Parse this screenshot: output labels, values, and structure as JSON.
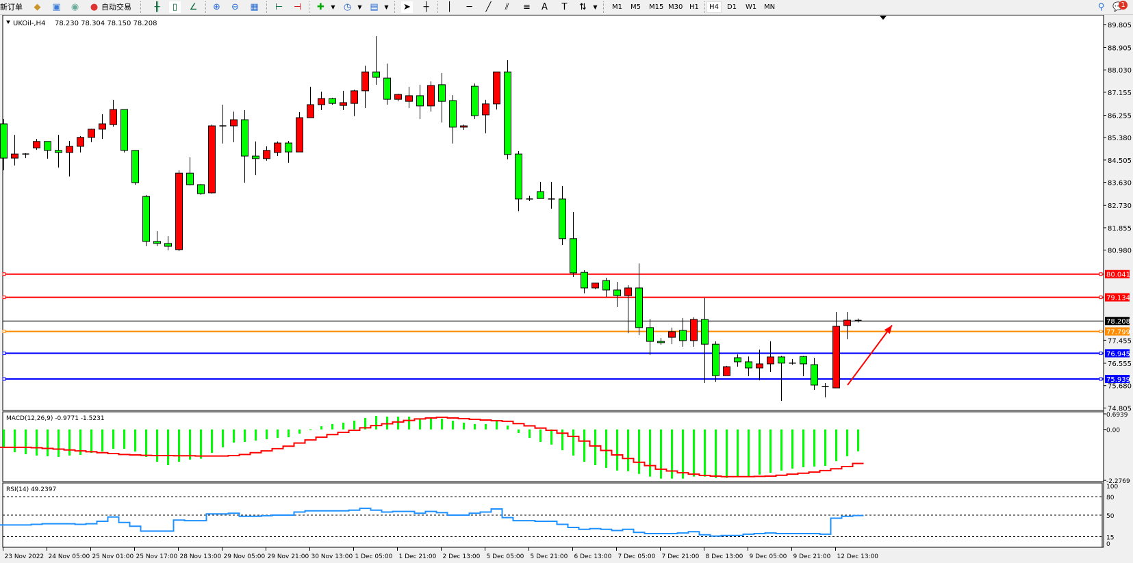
{
  "toolbar": {
    "new_order_label": "新订单",
    "auto_trading_label": "自动交易",
    "icons": [
      "metaeditor-icon",
      "terminal-icon",
      "signals-icon",
      "auto-trading-icon",
      "bar-chart-icon",
      "candlestick-icon",
      "line-chart-icon",
      "zoom-in-icon",
      "zoom-out-icon",
      "tile-windows-icon",
      "autoscroll-icon",
      "chart-shift-icon",
      "indicators-icon",
      "periods-icon",
      "templates-icon",
      "cursor-icon",
      "crosshair-icon",
      "vertical-line-icon",
      "horizontal-line-icon",
      "trendline-icon",
      "equidistant-channel-icon",
      "fibonacci-icon",
      "text-icon",
      "text-label-icon",
      "arrows-icon",
      "search-icon",
      "chat-icon"
    ],
    "timeframes": [
      "M1",
      "M5",
      "M15",
      "M30",
      "H1",
      "H4",
      "D1",
      "W1",
      "MN"
    ],
    "selected_timeframe": "H4",
    "notification_count": "1"
  },
  "chart_header": {
    "symbol": "UKOil-,H4",
    "ohlc": "78.230 78.304 78.150 78.208"
  },
  "colors": {
    "bull": "#ff0000",
    "bear": "#00ff00",
    "macd_hist": "#00ff00",
    "macd_signal": "#ff0000",
    "rsi": "#1e90ff",
    "arrow": "#ff0000"
  },
  "chart_data": [
    {
      "type": "candlestick",
      "title": "UKOil-,H4",
      "ohlc_fields": [
        "open",
        "high",
        "low",
        "close"
      ],
      "ylim": [
        74.805,
        89.805
      ],
      "y_ticks": [
        "89.805",
        "88.905",
        "88.030",
        "87.155",
        "86.255",
        "85.380",
        "84.505",
        "83.630",
        "82.730",
        "81.855",
        "80.980",
        "77.455",
        "76.555",
        "75.680",
        "74.805"
      ],
      "x_tick_labels": [
        "23 Nov 2022",
        "24 Nov 05:00",
        "25 Nov 01:00",
        "25 Nov 17:00",
        "28 Nov 13:00",
        "29 Nov 05:00",
        "29 Nov 21:00",
        "30 Nov 13:00",
        "1 Dec 05:00",
        "1 Dec 21:00",
        "2 Dec 13:00",
        "5 Dec 05:00",
        "5 Dec 21:00",
        "6 Dec 13:00",
        "7 Dec 05:00",
        "7 Dec 21:00",
        "8 Dec 13:00",
        "9 Dec 05:00",
        "9 Dec 21:00",
        "12 Dec 13:00"
      ],
      "x_tick_every_n_bars": 4,
      "candles": [
        [
          85.92,
          86.11,
          84.1,
          84.58
        ],
        [
          84.58,
          85.49,
          84.29,
          84.74
        ],
        [
          84.74,
          84.77,
          84.58,
          84.74
        ],
        [
          84.98,
          85.33,
          84.9,
          85.23
        ],
        [
          85.23,
          85.23,
          84.56,
          84.88
        ],
        [
          84.88,
          85.49,
          84.21,
          84.8
        ],
        [
          84.8,
          85.25,
          83.86,
          85.04
        ],
        [
          85.04,
          85.44,
          84.8,
          85.39
        ],
        [
          85.39,
          85.73,
          85.2,
          85.71
        ],
        [
          85.71,
          86.3,
          85.33,
          85.92
        ],
        [
          85.89,
          86.86,
          85.81,
          86.48
        ],
        [
          86.48,
          86.48,
          84.8,
          84.88
        ],
        [
          84.88,
          84.88,
          83.54,
          83.62
        ],
        [
          83.08,
          83.14,
          81.13,
          81.32
        ],
        [
          81.32,
          81.72,
          81.13,
          81.24
        ],
        [
          81.24,
          81.53,
          80.97,
          81.13
        ],
        [
          81.0,
          84.1,
          80.94,
          83.99
        ],
        [
          83.99,
          84.61,
          83.51,
          83.54
        ],
        [
          83.54,
          83.57,
          83.14,
          83.19
        ],
        [
          83.22,
          85.89,
          83.19,
          85.84
        ],
        [
          85.84,
          86.67,
          85.15,
          85.84
        ],
        [
          85.84,
          86.4,
          85.2,
          86.08
        ],
        [
          86.08,
          86.46,
          83.62,
          84.66
        ],
        [
          84.66,
          85.23,
          83.91,
          84.56
        ],
        [
          84.56,
          85.04,
          84.48,
          84.88
        ],
        [
          84.8,
          85.23,
          84.66,
          85.17
        ],
        [
          85.17,
          85.25,
          84.4,
          84.82
        ],
        [
          84.82,
          86.38,
          84.82,
          86.16
        ],
        [
          86.16,
          87.37,
          86.16,
          86.67
        ],
        [
          86.67,
          87.18,
          86.46,
          86.91
        ],
        [
          86.91,
          86.94,
          86.67,
          86.72
        ],
        [
          86.64,
          87.21,
          86.46,
          86.75
        ],
        [
          86.72,
          87.26,
          86.22,
          87.21
        ],
        [
          87.21,
          88.2,
          86.54,
          87.95
        ],
        [
          87.95,
          89.35,
          87.45,
          87.74
        ],
        [
          87.71,
          88.28,
          86.67,
          86.88
        ],
        [
          86.88,
          87.1,
          86.8,
          87.07
        ],
        [
          86.8,
          87.37,
          86.54,
          87.02
        ],
        [
          87.02,
          87.45,
          86.11,
          86.62
        ],
        [
          86.62,
          87.58,
          86.4,
          87.42
        ],
        [
          87.45,
          87.9,
          85.97,
          86.8
        ],
        [
          86.83,
          87.04,
          85.15,
          85.79
        ],
        [
          85.79,
          85.89,
          85.68,
          85.84
        ],
        [
          87.39,
          87.5,
          86.11,
          86.24
        ],
        [
          86.27,
          86.86,
          85.55,
          86.7
        ],
        [
          86.7,
          87.95,
          86.48,
          87.95
        ],
        [
          87.95,
          88.41,
          84.53,
          84.72
        ],
        [
          84.74,
          84.85,
          82.5,
          82.98
        ],
        [
          82.98,
          83.11,
          82.9,
          82.98
        ],
        [
          83.27,
          83.65,
          83.0,
          83.0
        ],
        [
          82.98,
          83.65,
          82.6,
          82.98
        ],
        [
          82.98,
          83.49,
          81.18,
          81.43
        ],
        [
          81.43,
          82.47,
          79.93,
          80.09
        ],
        [
          80.11,
          80.19,
          79.29,
          79.5
        ],
        [
          79.5,
          79.69,
          79.45,
          79.69
        ],
        [
          79.79,
          79.9,
          79.15,
          79.42
        ],
        [
          79.42,
          79.74,
          78.75,
          79.2
        ],
        [
          79.2,
          79.61,
          77.73,
          79.5
        ],
        [
          79.5,
          80.46,
          77.65,
          77.95
        ],
        [
          77.95,
          78.29,
          76.88,
          77.41
        ],
        [
          77.41,
          77.55,
          77.28,
          77.36
        ],
        [
          77.57,
          77.95,
          77.3,
          77.79
        ],
        [
          77.84,
          78.32,
          77.2,
          77.44
        ],
        [
          77.44,
          78.35,
          77.2,
          78.27
        ],
        [
          78.27,
          79.1,
          75.78,
          77.3
        ],
        [
          77.3,
          77.41,
          75.83,
          76.07
        ],
        [
          76.07,
          76.45,
          76.07,
          76.42
        ],
        [
          76.77,
          76.9,
          76.42,
          76.61
        ],
        [
          76.61,
          76.82,
          76.05,
          76.37
        ],
        [
          76.37,
          77.09,
          75.89,
          76.53
        ],
        [
          76.53,
          77.41,
          76.21,
          76.8
        ],
        [
          76.8,
          76.85,
          75.08,
          76.56
        ],
        [
          76.56,
          76.72,
          76.5,
          76.56
        ],
        [
          76.82,
          76.85,
          76.05,
          76.53
        ],
        [
          76.5,
          76.77,
          75.51,
          75.7
        ],
        [
          75.65,
          75.78,
          75.22,
          75.65
        ],
        [
          75.59,
          78.56,
          75.59,
          78.0
        ],
        [
          78.03,
          78.56,
          77.49,
          78.24
        ],
        [
          78.23,
          78.304,
          78.15,
          78.208
        ]
      ],
      "horizontal_lines": [
        {
          "price": 80.041,
          "label": "80.041",
          "color": "#ff0000"
        },
        {
          "price": 79.134,
          "label": "79.134",
          "color": "#ff0000"
        },
        {
          "price": 78.208,
          "label": "78.208",
          "color": "#000000"
        },
        {
          "price": 77.799,
          "label": "77.799",
          "color": "#ff8c00"
        },
        {
          "price": 76.945,
          "label": "76.945",
          "color": "#0000ff"
        },
        {
          "price": 75.939,
          "label": "75.939",
          "color": "#0000ff"
        }
      ],
      "annotation": {
        "type": "arrow",
        "direction": "up-right",
        "from_price": 75.7,
        "to_price": 78.04,
        "color": "#ff0000"
      }
    },
    {
      "type": "bar+line",
      "title": "MACD(12,26,9) -0.9771 -1.5231",
      "ylim": [
        -2.2769,
        0.6939
      ],
      "y_ticks": [
        "0.6939",
        "0.00",
        "-2.2769"
      ],
      "histogram": [
        -0.83,
        -1.02,
        -1.11,
        -1.17,
        -1.2,
        -1.23,
        -1.17,
        -1.14,
        -1.05,
        -0.99,
        -0.87,
        -0.87,
        -0.99,
        -1.23,
        -1.45,
        -1.6,
        -1.45,
        -1.35,
        -1.31,
        -1.05,
        -0.8,
        -0.59,
        -0.56,
        -0.5,
        -0.44,
        -0.38,
        -0.35,
        -0.19,
        -0.04,
        0.14,
        0.24,
        0.3,
        0.39,
        0.51,
        0.6,
        0.57,
        0.57,
        0.57,
        0.48,
        0.54,
        0.48,
        0.39,
        0.3,
        0.24,
        0.24,
        0.36,
        0.17,
        -0.16,
        -0.38,
        -0.56,
        -0.68,
        -0.93,
        -1.17,
        -1.45,
        -1.6,
        -1.72,
        -1.84,
        -1.87,
        -1.99,
        -2.11,
        -2.2,
        -2.2,
        -2.2,
        -2.11,
        -2.11,
        -2.17,
        -2.17,
        -2.11,
        -2.11,
        -2.02,
        -1.94,
        -1.84,
        -1.75,
        -1.69,
        -1.66,
        -1.63,
        -1.42,
        -1.2,
        -0.9771
      ],
      "signal": [
        -0.8,
        -0.8,
        -0.8,
        -0.82,
        -0.85,
        -0.88,
        -0.92,
        -0.96,
        -1.0,
        -1.04,
        -1.08,
        -1.12,
        -1.14,
        -1.16,
        -1.17,
        -1.17,
        -1.18,
        -1.18,
        -1.19,
        -1.19,
        -1.19,
        -1.17,
        -1.12,
        -1.04,
        -0.96,
        -0.86,
        -0.75,
        -0.61,
        -0.47,
        -0.35,
        -0.23,
        -0.13,
        -0.04,
        0.07,
        0.17,
        0.25,
        0.33,
        0.4,
        0.47,
        0.51,
        0.54,
        0.51,
        0.48,
        0.45,
        0.42,
        0.39,
        0.36,
        0.26,
        0.16,
        0.06,
        -0.04,
        -0.17,
        -0.31,
        -0.52,
        -0.74,
        -0.94,
        -1.14,
        -1.3,
        -1.47,
        -1.62,
        -1.78,
        -1.86,
        -1.94,
        -2.0,
        -2.06,
        -2.09,
        -2.11,
        -2.11,
        -2.11,
        -2.1,
        -2.09,
        -2.05,
        -2.0,
        -1.96,
        -1.91,
        -1.84,
        -1.76,
        -1.66,
        -1.5231
      ]
    },
    {
      "type": "line",
      "title": "RSI(14) 49.2397",
      "ylim": [
        0,
        100
      ],
      "y_ticks": [
        "100",
        "80",
        "50",
        "15",
        "0"
      ],
      "levels": [
        80,
        50,
        15
      ],
      "values": [
        34,
        34,
        34,
        35,
        36,
        36,
        36,
        35,
        36,
        40,
        47,
        38,
        32,
        24,
        24,
        24,
        42,
        41,
        41,
        52,
        52,
        53,
        48,
        48,
        49,
        50,
        50,
        55,
        57,
        57,
        57,
        57,
        58,
        61,
        58,
        55,
        56,
        56,
        53,
        56,
        54,
        50,
        50,
        53,
        55,
        60,
        46,
        41,
        41,
        40,
        40,
        35,
        30,
        27,
        28,
        27,
        25,
        27,
        22,
        20,
        20,
        20,
        21,
        23,
        18,
        16,
        17,
        17,
        19,
        20,
        21,
        20,
        20,
        20,
        20,
        19,
        45,
        48,
        49.2397
      ]
    }
  ]
}
